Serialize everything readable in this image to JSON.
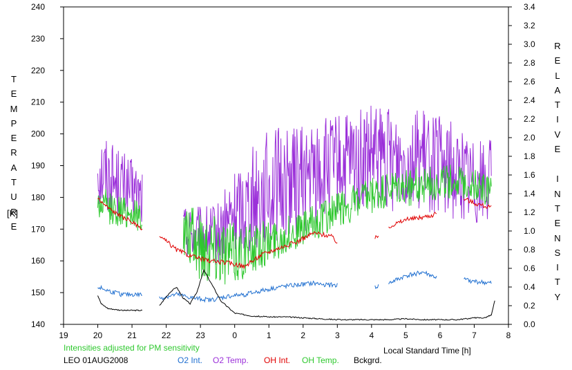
{
  "chart_data": {
    "type": "line",
    "station": "LEO 01AUG2008",
    "note": "Intensities adjusted for PM sensitivity",
    "xlabel": "Local Standard Time [h]",
    "ylabel_left": "TEMPERATURE",
    "ylabel_left_unit": "[K]",
    "ylabel_right": "RELATIVE INTENSITY",
    "x_ticks": [
      "19",
      "20",
      "21",
      "22",
      "23",
      "0",
      "1",
      "2",
      "3",
      "4",
      "5",
      "6",
      "7",
      "8"
    ],
    "x_range": [
      19,
      32
    ],
    "y_left_range": [
      140,
      240
    ],
    "y_left_ticks": [
      "140",
      "150",
      "160",
      "170",
      "180",
      "190",
      "200",
      "210",
      "220",
      "230",
      "240"
    ],
    "y_right_range": [
      0.0,
      3.4
    ],
    "y_right_ticks": [
      "0.0",
      "0.2",
      "0.4",
      "0.6",
      "0.8",
      "1.0",
      "1.2",
      "1.4",
      "1.6",
      "1.8",
      "2.0",
      "2.2",
      "2.4",
      "2.6",
      "2.8",
      "3.0",
      "3.2",
      "3.4"
    ],
    "legend": [
      {
        "label": "O2 Int.",
        "color": "#1f6fd0"
      },
      {
        "label": "O2 Temp.",
        "color": "#9b30d9"
      },
      {
        "label": "OH Int.",
        "color": "#e00000"
      },
      {
        "label": "OH Temp.",
        "color": "#2ec82e"
      },
      {
        "label": "Bckgrd.",
        "color": "#000000"
      }
    ],
    "series": [
      {
        "name": "O2 Temp.",
        "axis": "left",
        "color": "#9b30d9",
        "x": [
          20.0,
          20.5,
          21.0,
          21.3,
          21.8,
          22.5,
          23.0,
          23.5,
          24.0,
          24.5,
          25.0,
          25.5,
          26.0,
          26.5,
          27.0,
          27.5,
          28.0,
          28.5,
          29.0,
          29.5,
          30.0,
          30.5,
          31.0,
          31.5
        ],
        "y": [
          190,
          185,
          182,
          180,
          null,
          170,
          168,
          168,
          175,
          180,
          183,
          185,
          186,
          188,
          190,
          190,
          192,
          192,
          193,
          192,
          190,
          188,
          186,
          185
        ],
        "amp": [
          14,
          12,
          10,
          10,
          0,
          8,
          9,
          10,
          14,
          17,
          18,
          18,
          17,
          17,
          16,
          17,
          17,
          17,
          16,
          16,
          16,
          15,
          14,
          14
        ]
      },
      {
        "name": "OH Temp.",
        "axis": "left",
        "color": "#2ec82e",
        "x": [
          20.0,
          20.5,
          21.0,
          21.3,
          21.8,
          22.5,
          23.0,
          23.5,
          24.0,
          24.5,
          25.0,
          25.5,
          26.0,
          26.5,
          27.0,
          27.5,
          28.0,
          28.5,
          29.0,
          29.5,
          30.0,
          30.5,
          31.0,
          31.5
        ],
        "y": [
          178,
          176,
          175,
          174,
          null,
          168,
          165,
          165,
          162,
          164,
          166,
          168,
          170,
          173,
          176,
          178,
          180,
          182,
          183,
          184,
          185,
          185,
          184,
          182
        ],
        "amp": [
          6,
          5,
          5,
          5,
          0,
          9,
          12,
          12,
          10,
          8,
          7,
          6,
          6,
          6,
          6,
          6,
          6,
          6,
          6,
          6,
          6,
          5,
          5,
          5
        ]
      },
      {
        "name": "OH Int.",
        "axis": "right",
        "color": "#e00000",
        "x": [
          20.0,
          20.3,
          20.7,
          21.0,
          21.3,
          null,
          21.8,
          22.3,
          22.8,
          23.3,
          23.8,
          24.3,
          24.8,
          25.3,
          25.8,
          26.3,
          26.8,
          27.0,
          null,
          28.1,
          28.2,
          null,
          28.5,
          29.0,
          29.5,
          29.9,
          null,
          30.7,
          31.0,
          31.5
        ],
        "y": [
          1.35,
          1.25,
          1.15,
          1.1,
          1.0,
          null,
          0.95,
          0.8,
          0.72,
          0.68,
          0.66,
          0.62,
          0.75,
          0.82,
          0.88,
          0.98,
          0.95,
          0.88,
          null,
          0.92,
          0.95,
          null,
          1.05,
          1.12,
          1.15,
          1.18,
          null,
          1.35,
          1.3,
          1.25
        ]
      },
      {
        "name": "O2 Int.",
        "axis": "right",
        "color": "#1f6fd0",
        "x": [
          20.0,
          20.3,
          20.7,
          21.0,
          21.3,
          null,
          21.8,
          22.3,
          22.8,
          23.3,
          23.8,
          24.3,
          24.8,
          25.3,
          25.8,
          26.3,
          26.8,
          27.0,
          null,
          28.1,
          28.2,
          null,
          28.5,
          29.0,
          29.5,
          29.9,
          null,
          30.7,
          31.0,
          31.5
        ],
        "y": [
          0.4,
          0.36,
          0.32,
          0.32,
          0.32,
          null,
          0.28,
          0.32,
          0.28,
          0.26,
          0.3,
          0.32,
          0.36,
          0.4,
          0.42,
          0.44,
          0.42,
          0.42,
          null,
          0.4,
          0.41,
          null,
          0.44,
          0.52,
          0.56,
          0.5,
          null,
          0.48,
          0.46,
          0.44
        ]
      },
      {
        "name": "Bckgrd.",
        "axis": "right",
        "color": "#000000",
        "x": [
          20.0,
          20.1,
          20.3,
          20.7,
          21.0,
          21.3,
          null,
          21.8,
          22.1,
          22.3,
          22.5,
          22.7,
          22.9,
          23.1,
          23.3,
          23.6,
          24.0,
          24.5,
          25.0,
          25.5,
          26.0,
          26.5,
          27.0,
          27.5,
          28.0,
          28.5,
          29.0,
          29.5,
          30.0,
          30.5,
          31.0,
          31.3,
          31.5,
          31.6
        ],
        "y": [
          0.31,
          0.22,
          0.17,
          0.15,
          0.15,
          0.15,
          null,
          0.2,
          0.34,
          0.4,
          0.28,
          0.22,
          0.35,
          0.58,
          0.45,
          0.25,
          0.12,
          0.09,
          0.08,
          0.08,
          0.07,
          0.06,
          0.05,
          0.05,
          0.05,
          0.05,
          0.06,
          0.05,
          0.05,
          0.05,
          0.07,
          0.07,
          0.1,
          0.25
        ]
      }
    ]
  }
}
